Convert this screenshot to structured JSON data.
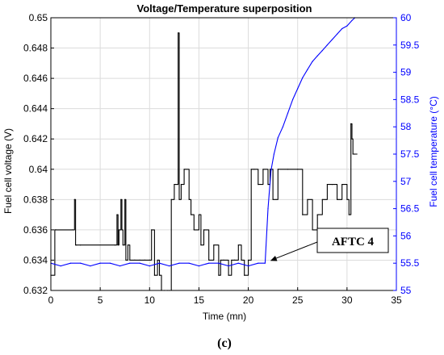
{
  "chart_data": {
    "type": "line",
    "title": "Voltage/Temperature superposition",
    "xlabel": "Time (mn)",
    "ylabel_left": "Fuel cell voltage (V)",
    "ylabel_right": "Fuel cell temperature (°C)",
    "xlim": [
      0,
      35
    ],
    "ylim_left": [
      0.632,
      0.65
    ],
    "ylim_right": [
      55,
      60
    ],
    "x_ticks": [
      "0",
      "5",
      "10",
      "15",
      "20",
      "25",
      "30",
      "35"
    ],
    "y_left_ticks": [
      "0.632",
      "0.634",
      "0.636",
      "0.638",
      "0.64",
      "0.642",
      "0.644",
      "0.646",
      "0.648",
      "0.65"
    ],
    "y_right_ticks": [
      "55",
      "55.5",
      "56",
      "56.5",
      "57",
      "57.5",
      "58",
      "58.5",
      "59",
      "59.5",
      "60"
    ],
    "grid": true,
    "colors": {
      "voltage": "#000000",
      "temperature": "#0000ff",
      "right_axis": "#0000ff"
    },
    "series": [
      {
        "axis": "left",
        "color": "#000000",
        "x": [
          0,
          0.4,
          0.5,
          2.2,
          2.4,
          2.5,
          2.6,
          3,
          6.5,
          6.7,
          6.8,
          6.9,
          7.1,
          7.2,
          7.3,
          7.5,
          7.6,
          7.8,
          8,
          8.5,
          9,
          9.5,
          10,
          10.2,
          10.5,
          10.8,
          11,
          11.2,
          11.5,
          11.8,
          12,
          12.2,
          12.5,
          12.8,
          12.9,
          13,
          13.2,
          13.5,
          14,
          14.2,
          14.5,
          15,
          15.2,
          15.5,
          16,
          16.5,
          17,
          17.2,
          17.5,
          18,
          18.3,
          18.6,
          19,
          19.3,
          19.6,
          20,
          20.3,
          20.6,
          21,
          21.5,
          22,
          22.2,
          22.5,
          23,
          24,
          25,
          25.5,
          26,
          26.5,
          27,
          27.5,
          28,
          28.5,
          29,
          29.5,
          30,
          30.2,
          30.4,
          30.5,
          30.6,
          30.7,
          30.8,
          31
        ],
        "values": [
          0.633,
          0.636,
          0.636,
          0.636,
          0.638,
          0.635,
          0.635,
          0.635,
          0.635,
          0.637,
          0.635,
          0.636,
          0.638,
          0.636,
          0.635,
          0.638,
          0.634,
          0.635,
          0.634,
          0.634,
          0.634,
          0.634,
          0.634,
          0.636,
          0.633,
          0.634,
          0.633,
          0.632,
          0.632,
          0.632,
          0.632,
          0.638,
          0.639,
          0.639,
          0.649,
          0.638,
          0.639,
          0.64,
          0.638,
          0.637,
          0.636,
          0.637,
          0.635,
          0.636,
          0.634,
          0.635,
          0.633,
          0.634,
          0.634,
          0.633,
          0.634,
          0.634,
          0.635,
          0.634,
          0.633,
          0.634,
          0.64,
          0.64,
          0.639,
          0.64,
          0.639,
          0.64,
          0.638,
          0.64,
          0.64,
          0.64,
          0.637,
          0.638,
          0.636,
          0.637,
          0.638,
          0.639,
          0.639,
          0.638,
          0.639,
          0.638,
          0.637,
          0.643,
          0.642,
          0.641,
          0.641,
          0.641,
          0.641
        ]
      },
      {
        "axis": "right",
        "color": "#0000ff",
        "x": [
          0,
          1,
          2,
          3,
          4,
          5,
          6,
          7,
          8,
          9,
          10,
          11,
          12,
          13,
          14,
          15,
          16,
          17,
          18,
          19,
          20,
          21,
          21.7,
          22,
          22.3,
          22.6,
          23,
          23.5,
          24,
          24.5,
          25,
          25.5,
          26,
          26.5,
          27,
          27.5,
          28,
          28.5,
          29,
          29.5,
          30,
          30.5,
          30.8
        ],
        "values": [
          55.5,
          55.45,
          55.5,
          55.5,
          55.45,
          55.5,
          55.5,
          55.45,
          55.5,
          55.5,
          55.45,
          55.5,
          55.45,
          55.5,
          55.5,
          55.45,
          55.5,
          55.5,
          55.45,
          55.5,
          55.45,
          55.5,
          55.5,
          56.5,
          57.2,
          57.5,
          57.8,
          58.0,
          58.25,
          58.5,
          58.7,
          58.9,
          59.05,
          59.2,
          59.3,
          59.4,
          59.5,
          59.6,
          59.7,
          59.8,
          59.85,
          59.95,
          60
        ]
      }
    ],
    "annotations": [
      {
        "text": "AFTC 4",
        "x": 21.9,
        "y_right": 55.5
      }
    ]
  },
  "caption": "(c)"
}
